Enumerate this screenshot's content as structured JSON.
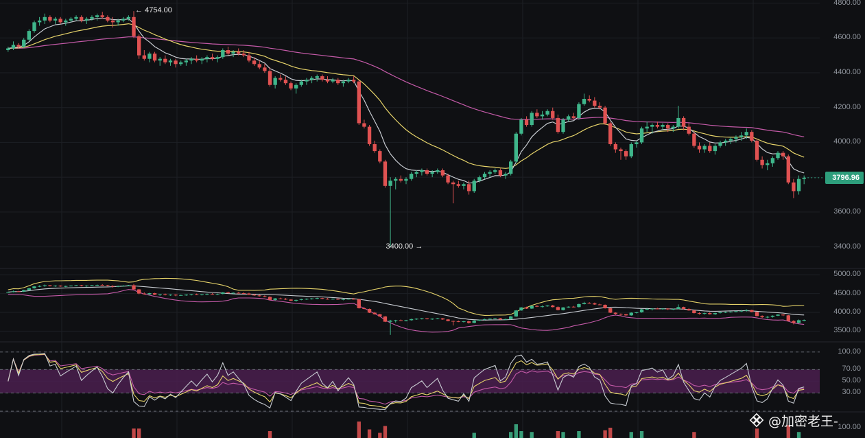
{
  "chart_data": {
    "type": "candlestick",
    "price_panel": {
      "ylim": [
        3280,
        4810
      ],
      "y_ticks": [
        "4800.00",
        "4600.00",
        "4400.00",
        "4200.00",
        "4000.00",
        "3800.00",
        "3600.00",
        "3400.00"
      ],
      "last_price": "3796.96",
      "high_marker": "4754.00",
      "low_marker": "3400.00",
      "high_value": 4754,
      "low_value": 3400,
      "high_index": 24,
      "low_index": 80,
      "candles": [
        [
          4530,
          4550,
          4520,
          4540
        ],
        [
          4540,
          4580,
          4530,
          4560
        ],
        [
          4560,
          4570,
          4540,
          4550
        ],
        [
          4550,
          4600,
          4540,
          4590
        ],
        [
          4590,
          4650,
          4580,
          4640
        ],
        [
          4640,
          4700,
          4630,
          4690
        ],
        [
          4690,
          4720,
          4670,
          4700
        ],
        [
          4700,
          4740,
          4680,
          4720
        ],
        [
          4720,
          4730,
          4690,
          4700
        ],
        [
          4700,
          4720,
          4680,
          4710
        ],
        [
          4710,
          4720,
          4680,
          4690
        ],
        [
          4690,
          4710,
          4670,
          4700
        ],
        [
          4700,
          4720,
          4690,
          4710
        ],
        [
          4710,
          4730,
          4700,
          4720
        ],
        [
          4720,
          4730,
          4690,
          4700
        ],
        [
          4700,
          4720,
          4680,
          4710
        ],
        [
          4710,
          4730,
          4700,
          4720
        ],
        [
          4720,
          4740,
          4700,
          4730
        ],
        [
          4730,
          4750,
          4710,
          4720
        ],
        [
          4720,
          4730,
          4690,
          4700
        ],
        [
          4700,
          4720,
          4660,
          4690
        ],
        [
          4690,
          4710,
          4670,
          4700
        ],
        [
          4700,
          4720,
          4690,
          4710
        ],
        [
          4710,
          4730,
          4700,
          4720
        ],
        [
          4720,
          4754,
          4600,
          4610
        ],
        [
          4610,
          4620,
          4480,
          4500
        ],
        [
          4500,
          4530,
          4470,
          4480
        ],
        [
          4480,
          4520,
          4460,
          4510
        ],
        [
          4510,
          4520,
          4460,
          4470
        ],
        [
          4470,
          4490,
          4440,
          4480
        ],
        [
          4480,
          4500,
          4450,
          4460
        ],
        [
          4460,
          4480,
          4440,
          4470
        ],
        [
          4470,
          4480,
          4430,
          4450
        ],
        [
          4450,
          4470,
          4440,
          4460
        ],
        [
          4460,
          4480,
          4440,
          4470
        ],
        [
          4470,
          4490,
          4450,
          4480
        ],
        [
          4480,
          4500,
          4460,
          4470
        ],
        [
          4470,
          4490,
          4450,
          4480
        ],
        [
          4480,
          4500,
          4460,
          4490
        ],
        [
          4490,
          4510,
          4470,
          4480
        ],
        [
          4480,
          4500,
          4460,
          4490
        ],
        [
          4490,
          4540,
          4480,
          4530
        ],
        [
          4530,
          4550,
          4500,
          4510
        ],
        [
          4510,
          4530,
          4490,
          4520
        ],
        [
          4520,
          4540,
          4500,
          4510
        ],
        [
          4510,
          4530,
          4490,
          4500
        ],
        [
          4500,
          4520,
          4460,
          4470
        ],
        [
          4470,
          4490,
          4440,
          4450
        ],
        [
          4450,
          4470,
          4420,
          4430
        ],
        [
          4430,
          4450,
          4400,
          4410
        ],
        [
          4410,
          4430,
          4320,
          4330
        ],
        [
          4330,
          4380,
          4310,
          4370
        ],
        [
          4370,
          4390,
          4350,
          4360
        ],
        [
          4360,
          4380,
          4330,
          4340
        ],
        [
          4340,
          4350,
          4300,
          4310
        ],
        [
          4310,
          4340,
          4280,
          4330
        ],
        [
          4330,
          4360,
          4320,
          4350
        ],
        [
          4350,
          4370,
          4330,
          4360
        ],
        [
          4360,
          4380,
          4340,
          4370
        ],
        [
          4370,
          4390,
          4350,
          4380
        ],
        [
          4380,
          4390,
          4350,
          4360
        ],
        [
          4360,
          4380,
          4340,
          4350
        ],
        [
          4350,
          4370,
          4340,
          4360
        ],
        [
          4360,
          4370,
          4330,
          4340
        ],
        [
          4340,
          4360,
          4320,
          4350
        ],
        [
          4350,
          4370,
          4340,
          4360
        ],
        [
          4360,
          4380,
          4340,
          4350
        ],
        [
          4350,
          4360,
          4100,
          4110
        ],
        [
          4110,
          4130,
          4080,
          4090
        ],
        [
          4090,
          4100,
          3980,
          3990
        ],
        [
          3990,
          4010,
          3940,
          3950
        ],
        [
          3950,
          3960,
          3880,
          3890
        ],
        [
          3890,
          3900,
          3740,
          3750
        ],
        [
          3750,
          3800,
          3400,
          3780
        ],
        [
          3780,
          3800,
          3730,
          3790
        ],
        [
          3790,
          3810,
          3770,
          3780
        ],
        [
          3780,
          3800,
          3760,
          3790
        ],
        [
          3790,
          3830,
          3780,
          3820
        ],
        [
          3820,
          3840,
          3800,
          3830
        ],
        [
          3830,
          3850,
          3810,
          3840
        ],
        [
          3840,
          3850,
          3810,
          3820
        ],
        [
          3820,
          3840,
          3800,
          3830
        ],
        [
          3830,
          3850,
          3820,
          3840
        ],
        [
          3840,
          3850,
          3800,
          3810
        ],
        [
          3810,
          3820,
          3760,
          3770
        ],
        [
          3770,
          3780,
          3650,
          3760
        ],
        [
          3760,
          3780,
          3740,
          3750
        ],
        [
          3750,
          3770,
          3730,
          3760
        ],
        [
          3760,
          3780,
          3700,
          3720
        ],
        [
          3720,
          3790,
          3710,
          3780
        ],
        [
          3780,
          3810,
          3770,
          3800
        ],
        [
          3800,
          3830,
          3790,
          3820
        ],
        [
          3820,
          3840,
          3800,
          3830
        ],
        [
          3830,
          3850,
          3820,
          3840
        ],
        [
          3840,
          3850,
          3800,
          3810
        ],
        [
          3810,
          3830,
          3790,
          3820
        ],
        [
          3820,
          3900,
          3810,
          3890
        ],
        [
          3890,
          4060,
          3880,
          4050
        ],
        [
          4050,
          4140,
          4040,
          4130
        ],
        [
          4130,
          4150,
          4090,
          4100
        ],
        [
          4100,
          4180,
          4090,
          4170
        ],
        [
          4170,
          4190,
          4140,
          4150
        ],
        [
          4150,
          4180,
          4130,
          4160
        ],
        [
          4160,
          4190,
          4150,
          4180
        ],
        [
          4180,
          4200,
          4130,
          4140
        ],
        [
          4140,
          4160,
          4050,
          4060
        ],
        [
          4060,
          4140,
          4050,
          4130
        ],
        [
          4130,
          4160,
          4120,
          4150
        ],
        [
          4150,
          4170,
          4130,
          4140
        ],
        [
          4140,
          4230,
          4130,
          4220
        ],
        [
          4220,
          4280,
          4210,
          4250
        ],
        [
          4250,
          4270,
          4230,
          4240
        ],
        [
          4240,
          4260,
          4200,
          4210
        ],
        [
          4210,
          4230,
          4190,
          4200
        ],
        [
          4200,
          4210,
          4100,
          4110
        ],
        [
          4110,
          4120,
          3980,
          3990
        ],
        [
          3990,
          4000,
          3940,
          3960
        ],
        [
          3960,
          3970,
          3900,
          3950
        ],
        [
          3950,
          3960,
          3900,
          3920
        ],
        [
          3920,
          4000,
          3910,
          3990
        ],
        [
          3990,
          4010,
          3970,
          4000
        ],
        [
          4000,
          4090,
          3990,
          4080
        ],
        [
          4080,
          4120,
          4060,
          4090
        ],
        [
          4090,
          4110,
          4050,
          4100
        ],
        [
          4100,
          4120,
          4080,
          4090
        ],
        [
          4090,
          4110,
          4070,
          4100
        ],
        [
          4100,
          4110,
          4060,
          4080
        ],
        [
          4080,
          4100,
          4060,
          4090
        ],
        [
          4090,
          4210,
          4080,
          4140
        ],
        [
          4140,
          4150,
          4070,
          4090
        ],
        [
          4090,
          4110,
          4040,
          4050
        ],
        [
          4050,
          4060,
          3970,
          3980
        ],
        [
          3980,
          4000,
          3940,
          3960
        ],
        [
          3960,
          3990,
          3940,
          3980
        ],
        [
          3980,
          4000,
          3940,
          3950
        ],
        [
          3950,
          3990,
          3930,
          3980
        ],
        [
          3980,
          4010,
          3970,
          4000
        ],
        [
          4000,
          4020,
          3980,
          4010
        ],
        [
          4010,
          4030,
          3990,
          4020
        ],
        [
          4020,
          4040,
          4000,
          4030
        ],
        [
          4030,
          4060,
          4010,
          4040
        ],
        [
          4040,
          4080,
          4020,
          4060
        ],
        [
          4060,
          4070,
          4000,
          4010
        ],
        [
          4010,
          4020,
          3890,
          3900
        ],
        [
          3900,
          3920,
          3850,
          3870
        ],
        [
          3870,
          3900,
          3840,
          3880
        ],
        [
          3880,
          3920,
          3860,
          3910
        ],
        [
          3910,
          3950,
          3900,
          3940
        ],
        [
          3940,
          3950,
          3900,
          3920
        ],
        [
          3920,
          3930,
          3760,
          3770
        ],
        [
          3770,
          3790,
          3680,
          3720
        ],
        [
          3720,
          3810,
          3700,
          3790
        ],
        [
          3790,
          3810,
          3760,
          3796.96
        ]
      ]
    },
    "bollinger_panel": {
      "ylim": [
        3250,
        5150
      ],
      "y_ticks": [
        "5000.00",
        "4500.00",
        "4000.00",
        "3500.00"
      ]
    },
    "rsi_panel": {
      "ylim": [
        0,
        115
      ],
      "y_ticks": [
        "100.00",
        "70.00",
        "50.00",
        "30.00"
      ],
      "band": [
        30,
        70
      ]
    },
    "volume_panel": {
      "y_ticks": [
        "100.00"
      ]
    },
    "colors": {
      "up": "#3fb68b",
      "down": "#e05252",
      "ma_fast": "#c8ccd2",
      "ma_mid": "#e6d36a",
      "ma_slow": "#c45aa8",
      "rsi_band": "#4a1f4f",
      "badge": "#2e9e7c",
      "grid": "#1d1f24"
    }
  },
  "watermark": {
    "text": "@加密老王-"
  }
}
